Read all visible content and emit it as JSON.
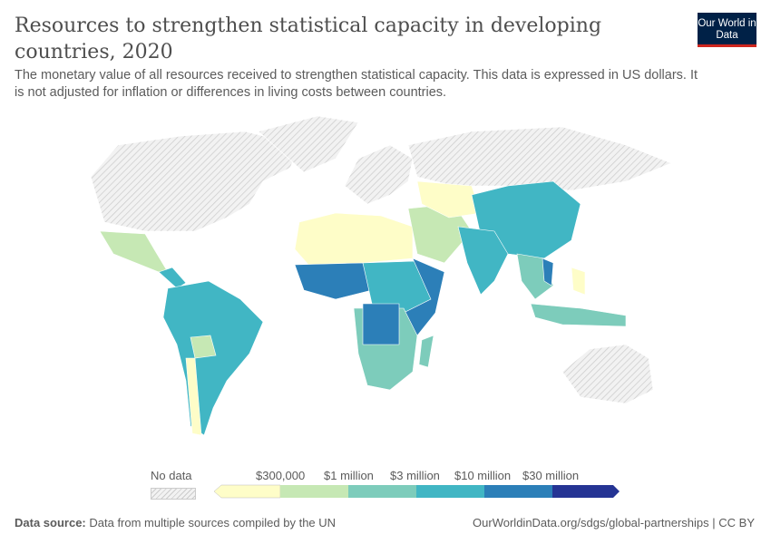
{
  "header": {
    "title": "Resources to strengthen statistical capacity in developing countries, 2020",
    "subtitle": "The monetary value of all resources received to strengthen statistical capacity. This data is expressed in US dollars. It is not adjusted for inflation or differences in living costs between countries.",
    "logo": "Our World in Data"
  },
  "legend": {
    "no_data": "No data",
    "bins": [
      "$300,000",
      "$1 million",
      "$3 million",
      "$10 million",
      "$30 million"
    ],
    "colors": [
      "#fefdc8",
      "#c6e8b4",
      "#7dccbb",
      "#41b6c4",
      "#2c7fb8",
      "#253494"
    ]
  },
  "footer": {
    "source_label": "Data source:",
    "source": "Data from multiple sources compiled by the UN",
    "url": "OurWorldinData.org/sdgs/global-partnerships | CC BY"
  }
}
